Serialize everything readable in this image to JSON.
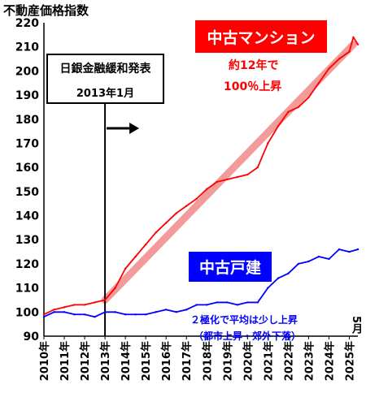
{
  "chart_data": {
    "type": "line",
    "ylabel": "不動産価格指数",
    "ylim": [
      90,
      220
    ],
    "yticks": [
      90,
      100,
      110,
      120,
      130,
      140,
      150,
      160,
      170,
      180,
      190,
      200,
      210,
      220
    ],
    "x_range": [
      2010.0,
      2025.42
    ],
    "x_tick_labels": [
      "2010年",
      "2011年",
      "2012年",
      "2013年",
      "2014年",
      "2015年",
      "2016年",
      "2017年",
      "2018年",
      "2019年",
      "2020年",
      "2021年",
      "2022年",
      "2023年",
      "2024年",
      "2025年"
    ],
    "x_end_label": "5月",
    "grid": false,
    "series": [
      {
        "name": "中古マンション",
        "color": "#ff0000",
        "x": [
          2010.0,
          2010.5,
          2011.0,
          2011.5,
          2012.0,
          2012.5,
          2013.0,
          2013.5,
          2014.0,
          2014.5,
          2015.0,
          2015.5,
          2016.0,
          2016.5,
          2017.0,
          2017.5,
          2018.0,
          2018.5,
          2019.0,
          2019.5,
          2020.0,
          2020.5,
          2021.0,
          2021.5,
          2022.0,
          2022.5,
          2023.0,
          2023.5,
          2024.0,
          2024.5,
          2025.0,
          2025.2,
          2025.42
        ],
        "y": [
          99,
          101,
          102,
          103,
          103,
          104,
          105,
          110,
          118,
          123,
          128,
          133,
          137,
          141,
          144,
          147,
          151,
          154,
          155,
          156,
          157,
          160,
          170,
          177,
          183,
          185,
          189,
          195,
          201,
          205,
          208,
          214,
          211
        ]
      },
      {
        "name": "中古戸建",
        "color": "#0000ff",
        "x": [
          2010.0,
          2010.5,
          2011.0,
          2011.5,
          2012.0,
          2012.5,
          2013.0,
          2013.5,
          2014.0,
          2014.5,
          2015.0,
          2015.5,
          2016.0,
          2016.5,
          2017.0,
          2017.5,
          2018.0,
          2018.5,
          2019.0,
          2019.5,
          2020.0,
          2020.5,
          2021.0,
          2021.5,
          2022.0,
          2022.5,
          2023.0,
          2023.5,
          2024.0,
          2024.5,
          2025.0,
          2025.42
        ],
        "y": [
          98,
          100,
          100,
          99,
          99,
          98,
          100,
          100,
          99,
          99,
          99,
          100,
          101,
          100,
          101,
          103,
          103,
          104,
          104,
          103,
          104,
          104,
          110,
          114,
          116,
          120,
          121,
          123,
          122,
          126,
          125,
          126
        ]
      }
    ],
    "trend_line": {
      "x": [
        2013.0,
        2025.2
      ],
      "y": [
        105,
        211
      ],
      "color": "#f28a8a"
    },
    "vline_x": 2013.0,
    "annotations": {
      "mansion_label": "中古マンション",
      "mansion_note_1": "約12年で",
      "mansion_note_2": "100％上昇",
      "boj_title": "日銀金融緩和発表",
      "boj_date": "2013年1月",
      "house_label": "中古戸建",
      "house_note_1": "２極化で平均は少し上昇",
      "house_note_2": "（都市上昇・郊外下落）"
    }
  }
}
